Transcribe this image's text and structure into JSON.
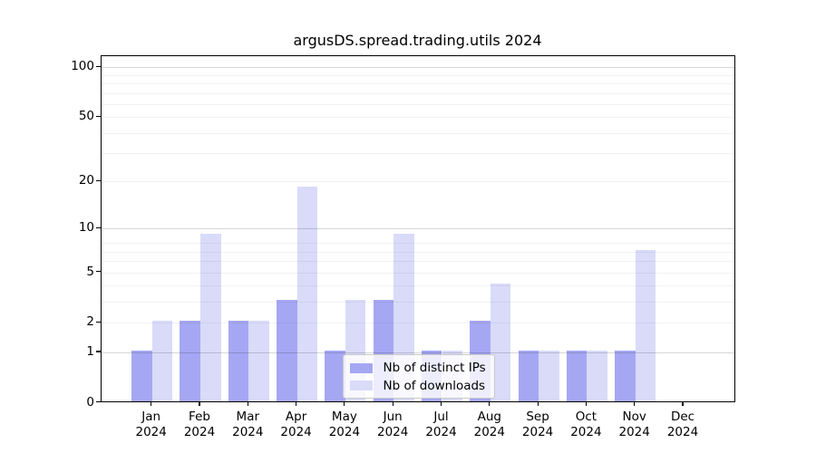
{
  "figure": {
    "title": "argusDS.spread.trading.utils 2024"
  },
  "legend": {
    "items": [
      {
        "label": "Nb of distinct IPs",
        "series_key": "distinct_ips"
      },
      {
        "label": "Nb of downloads",
        "series_key": "downloads"
      }
    ]
  },
  "chart_data": {
    "type": "bar",
    "title": "argusDS.spread.trading.utils 2024",
    "categories": [
      "Jan",
      "Feb",
      "Mar",
      "Apr",
      "May",
      "Jun",
      "Jul",
      "Aug",
      "Sep",
      "Oct",
      "Nov",
      "Dec"
    ],
    "year": "2024",
    "series": [
      {
        "name": "Nb of distinct IPs",
        "color": "#a5a7f3",
        "values": [
          1,
          2,
          2,
          3,
          1,
          3,
          1,
          2,
          1,
          1,
          1,
          0
        ]
      },
      {
        "name": "Nb of downloads",
        "color": "#d9dbf9",
        "values": [
          2,
          9,
          2,
          18,
          3,
          9,
          1,
          4,
          1,
          1,
          7,
          0
        ]
      }
    ],
    "y_axis": {
      "scale": "log1p",
      "ticks": [
        0,
        1,
        2,
        5,
        10,
        20,
        50,
        100
      ],
      "major_grid": [
        1,
        10,
        100
      ],
      "minor_grid": [
        2,
        3,
        4,
        5,
        6,
        7,
        8,
        20,
        30,
        40,
        50,
        60,
        70,
        80,
        90
      ],
      "ylim": [
        0,
        117
      ]
    },
    "xlabel": "",
    "ylabel": "",
    "grid": true,
    "legend_position": "lower center"
  }
}
